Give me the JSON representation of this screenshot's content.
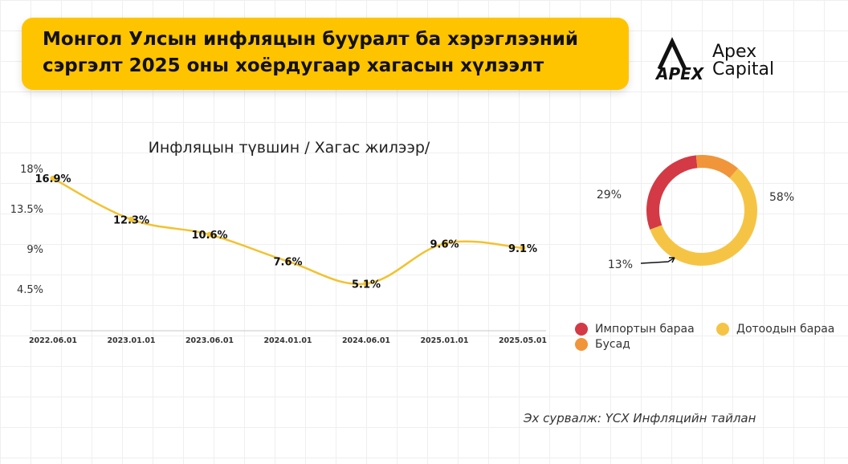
{
  "header": {
    "title_lines": [
      "Монгол Улсын инфляцын бууралт ба хэрэглээний",
      "сэргэлт 2025 оны хоёрдугаар хагасын хүлээлт"
    ]
  },
  "brand": {
    "mark_text": "APEX",
    "name_lines": [
      "Apex",
      "Capital"
    ]
  },
  "chart_data": [
    {
      "type": "line",
      "title": "Инфляцын түвшин / Хагас жилээр/",
      "categories": [
        "2022.06.01",
        "2023.01.01",
        "2023.06.01",
        "2024.01.01",
        "2024.06.01",
        "2025.01.01",
        "2025.05.01"
      ],
      "series": [
        {
          "values": [
            16.9,
            12.3,
            10.6,
            7.6,
            5.1,
            9.6,
            9.1
          ],
          "color": "#f2c230"
        }
      ],
      "data_labels": [
        "16.9%",
        "12.3%",
        "10.6%",
        "7.6%",
        "5.1%",
        "9.6%",
        "9.1%"
      ],
      "yticks": [
        18,
        13.5,
        9,
        4.5
      ],
      "ytick_labels": [
        "18%",
        "13.5%",
        "9%",
        "4.5%"
      ],
      "ylim": [
        0,
        18
      ],
      "xlabel": "",
      "ylabel": "",
      "grid": false
    },
    {
      "type": "pie",
      "donut": true,
      "slices": [
        {
          "label": "Импортын бараа",
          "value": 29,
          "value_label": "29%",
          "color": "#d33a45"
        },
        {
          "label": "Бусад",
          "value": 13,
          "value_label": "13%",
          "color": "#f0953a"
        },
        {
          "label": "Дотоодын бараа",
          "value": 58,
          "value_label": "58%",
          "color": "#f6c445"
        }
      ],
      "legend_position": "bottom"
    }
  ],
  "source": "Эх сурвалж: ҮСХ Инфляцийн тайлан"
}
